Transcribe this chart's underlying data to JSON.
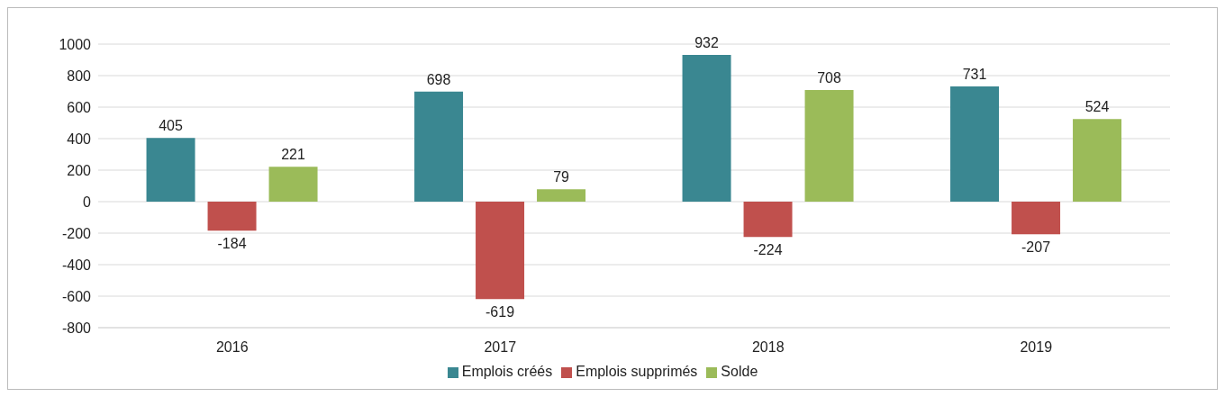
{
  "chart_data": {
    "type": "bar",
    "categories": [
      "2016",
      "2017",
      "2018",
      "2019"
    ],
    "series": [
      {
        "name": "Emplois créés",
        "color": "#3a8791",
        "values": [
          405,
          698,
          932,
          731
        ]
      },
      {
        "name": "Emplois supprimés",
        "color": "#c0504d",
        "values": [
          -184,
          -619,
          -224,
          -207
        ]
      },
      {
        "name": "Solde",
        "color": "#9bbb59",
        "values": [
          221,
          79,
          708,
          524
        ]
      }
    ],
    "ylim": [
      -800,
      1000
    ],
    "yticks": [
      -800,
      -600,
      -400,
      -200,
      0,
      200,
      400,
      600,
      800,
      1000
    ],
    "grid": "y",
    "legend": "bottom",
    "data_labels": true
  }
}
